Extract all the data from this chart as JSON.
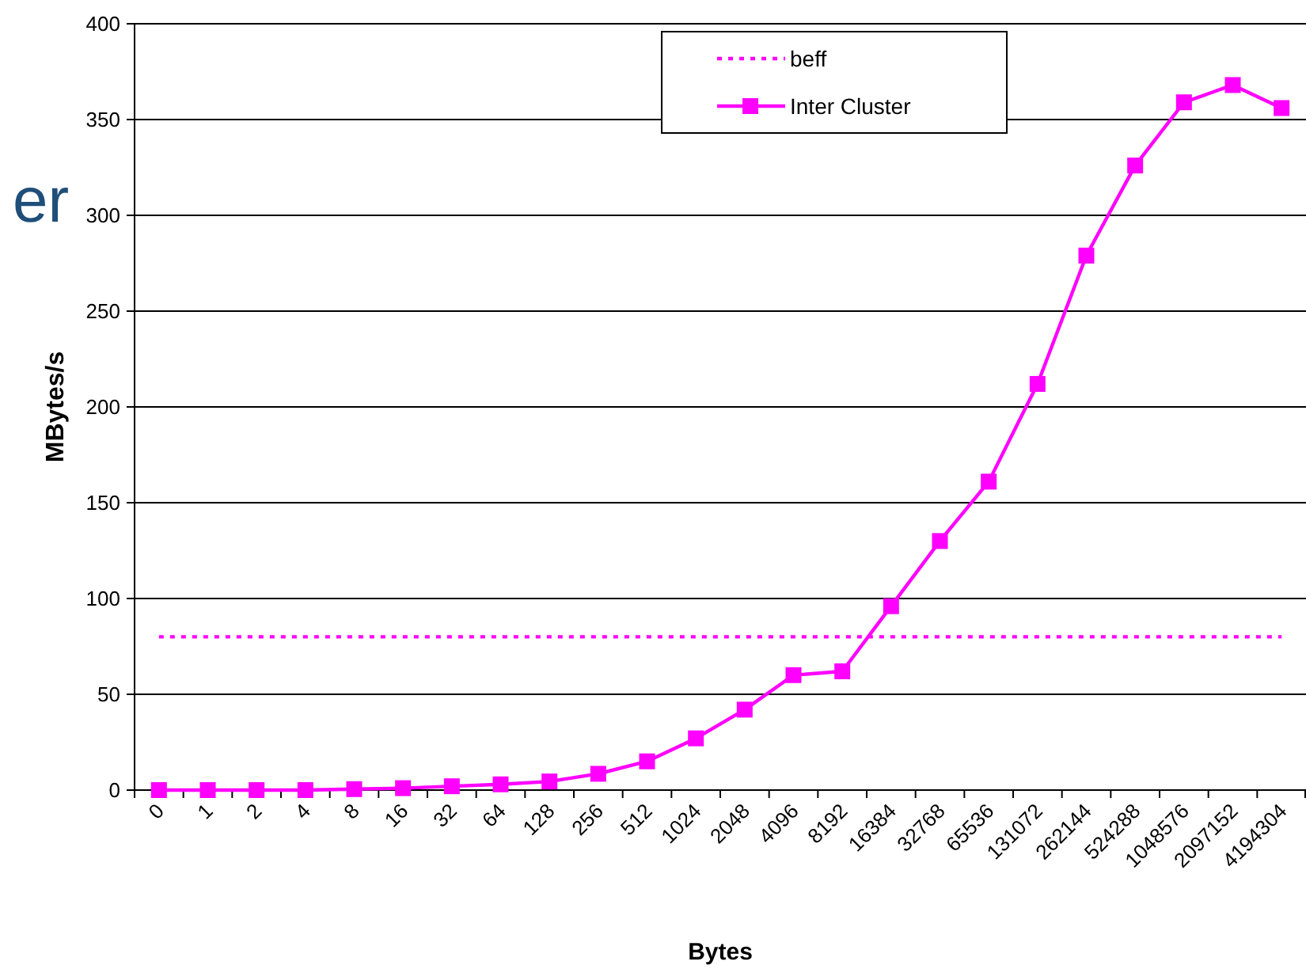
{
  "chart_data": {
    "type": "line",
    "xlabel": "Bytes",
    "ylabel": "MBytes/s",
    "annotations": [
      "er"
    ],
    "categories": [
      "0",
      "1",
      "2",
      "4",
      "8",
      "16",
      "32",
      "64",
      "128",
      "256",
      "512",
      "1024",
      "2048",
      "4096",
      "8192",
      "16384",
      "32768",
      "65536",
      "131072",
      "262144",
      "524288",
      "1048576",
      "2097152",
      "4194304"
    ],
    "series": [
      {
        "name": "beff",
        "color": "#ff00ff",
        "line_style": "dotted",
        "marker": "none",
        "values": [
          80,
          80,
          80,
          80,
          80,
          80,
          80,
          80,
          80,
          80,
          80,
          80,
          80,
          80,
          80,
          80,
          80,
          80,
          80,
          80,
          80,
          80,
          80,
          80
        ]
      },
      {
        "name": "Inter Cluster",
        "color": "#ff00ff",
        "line_style": "solid",
        "marker": "square",
        "values": [
          0,
          0,
          0,
          0,
          0.5,
          1,
          2,
          3,
          4.5,
          8.5,
          15,
          27,
          42,
          60,
          62,
          96,
          130,
          161,
          212,
          279,
          326,
          359,
          368,
          356
        ]
      }
    ],
    "ylim": [
      0,
      400
    ],
    "yticks": [
      0,
      50,
      100,
      150,
      200,
      250,
      300,
      350,
      400
    ],
    "grid": "y",
    "legend": "top"
  }
}
